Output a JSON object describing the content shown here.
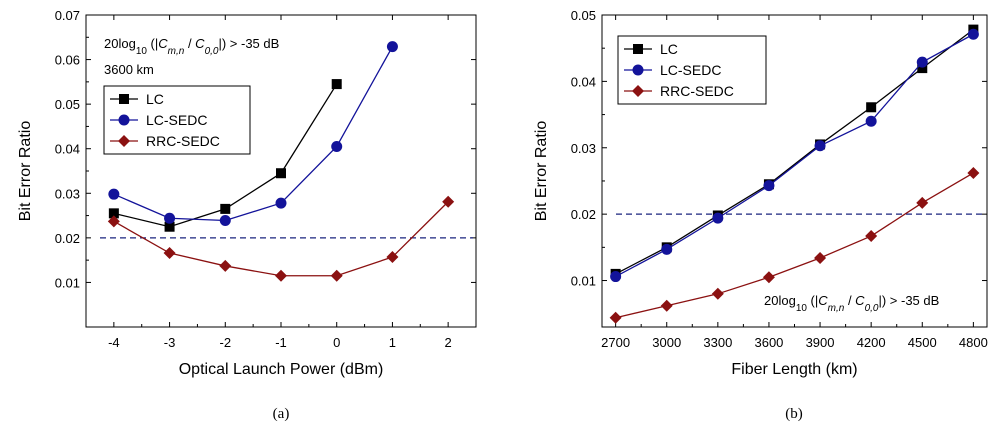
{
  "colors": {
    "LC": "#000000",
    "LC-SEDC": "#13139a",
    "RRC-SEDC": "#8b1111",
    "threshold": "#1a237e"
  },
  "chart_data": [
    {
      "id": "a",
      "type": "line",
      "caption": "(a)",
      "xlabel": "Optical Launch Power (dBm)",
      "ylabel": "Bit Error Ratio",
      "xlim": [
        -4.5,
        2.5
      ],
      "ylim": [
        0.0,
        0.07
      ],
      "xticks": [
        -4,
        -3,
        -2,
        -1,
        0,
        1,
        2
      ],
      "yticks": [
        0.01,
        0.02,
        0.03,
        0.04,
        0.05,
        0.06,
        0.07
      ],
      "ytick_labels": [
        "0.01",
        "0.02",
        "0.03",
        "0.04",
        "0.05",
        "0.06",
        "0.07"
      ],
      "threshold": 0.02,
      "legend_position": "upper-left",
      "annotation": {
        "prefix": "20log",
        "sub": "10",
        "mid1": " (|",
        "c1": "C",
        "c1sub": "m,n",
        "mid2": " / ",
        "c2": "C",
        "c2sub": "0,0",
        "suffix": "|) > -35 dB",
        "line2": "3600 km"
      },
      "series": [
        {
          "name": "LC",
          "marker": "square",
          "x": [
            -4,
            -3,
            -2,
            -1,
            0
          ],
          "y": [
            0.0255,
            0.0225,
            0.0265,
            0.0345,
            0.0545
          ]
        },
        {
          "name": "LC-SEDC",
          "marker": "circle",
          "x": [
            -4,
            -3,
            -2,
            -1,
            0,
            1
          ],
          "y": [
            0.0298,
            0.0244,
            0.0239,
            0.0278,
            0.0405,
            0.0629
          ]
        },
        {
          "name": "RRC-SEDC",
          "marker": "diamond",
          "x": [
            -4,
            -3,
            -2,
            -1,
            0,
            1,
            2
          ],
          "y": [
            0.0237,
            0.0166,
            0.0137,
            0.0115,
            0.0115,
            0.0157,
            0.0281
          ]
        }
      ]
    },
    {
      "id": "b",
      "type": "line",
      "caption": "(b)",
      "xlabel": "Fiber Length (km)",
      "ylabel": "Bit Error Ratio",
      "xlim": [
        2620,
        4880
      ],
      "ylim": [
        0.003,
        0.05
      ],
      "xticks": [
        2700,
        3000,
        3300,
        3600,
        3900,
        4200,
        4500,
        4800
      ],
      "yticks": [
        0.01,
        0.02,
        0.03,
        0.04,
        0.05
      ],
      "ytick_labels": [
        "0.01",
        "0.02",
        "0.03",
        "0.04",
        "0.05"
      ],
      "threshold": 0.02,
      "legend_position": "upper-left",
      "annotation": {
        "prefix": "20log",
        "sub": "10",
        "mid1": " (|",
        "c1": "C",
        "c1sub": "m,n",
        "mid2": " / ",
        "c2": "C",
        "c2sub": "0,0",
        "suffix": "|) > -35 dB"
      },
      "series": [
        {
          "name": "LC",
          "marker": "square",
          "x": [
            2700,
            3000,
            3300,
            3600,
            3900,
            4200,
            4500,
            4800
          ],
          "y": [
            0.011,
            0.015,
            0.0198,
            0.0245,
            0.0305,
            0.0361,
            0.042,
            0.0478
          ]
        },
        {
          "name": "LC-SEDC",
          "marker": "circle",
          "x": [
            2700,
            3000,
            3300,
            3600,
            3900,
            4200,
            4500,
            4800
          ],
          "y": [
            0.0106,
            0.0147,
            0.0194,
            0.0243,
            0.0303,
            0.034,
            0.0429,
            0.0471
          ]
        },
        {
          "name": "RRC-SEDC",
          "marker": "diamond",
          "x": [
            2700,
            3000,
            3300,
            3600,
            3900,
            4200,
            4500,
            4800
          ],
          "y": [
            0.0044,
            0.0062,
            0.008,
            0.0105,
            0.0134,
            0.0167,
            0.0217,
            0.0262
          ]
        }
      ]
    }
  ]
}
